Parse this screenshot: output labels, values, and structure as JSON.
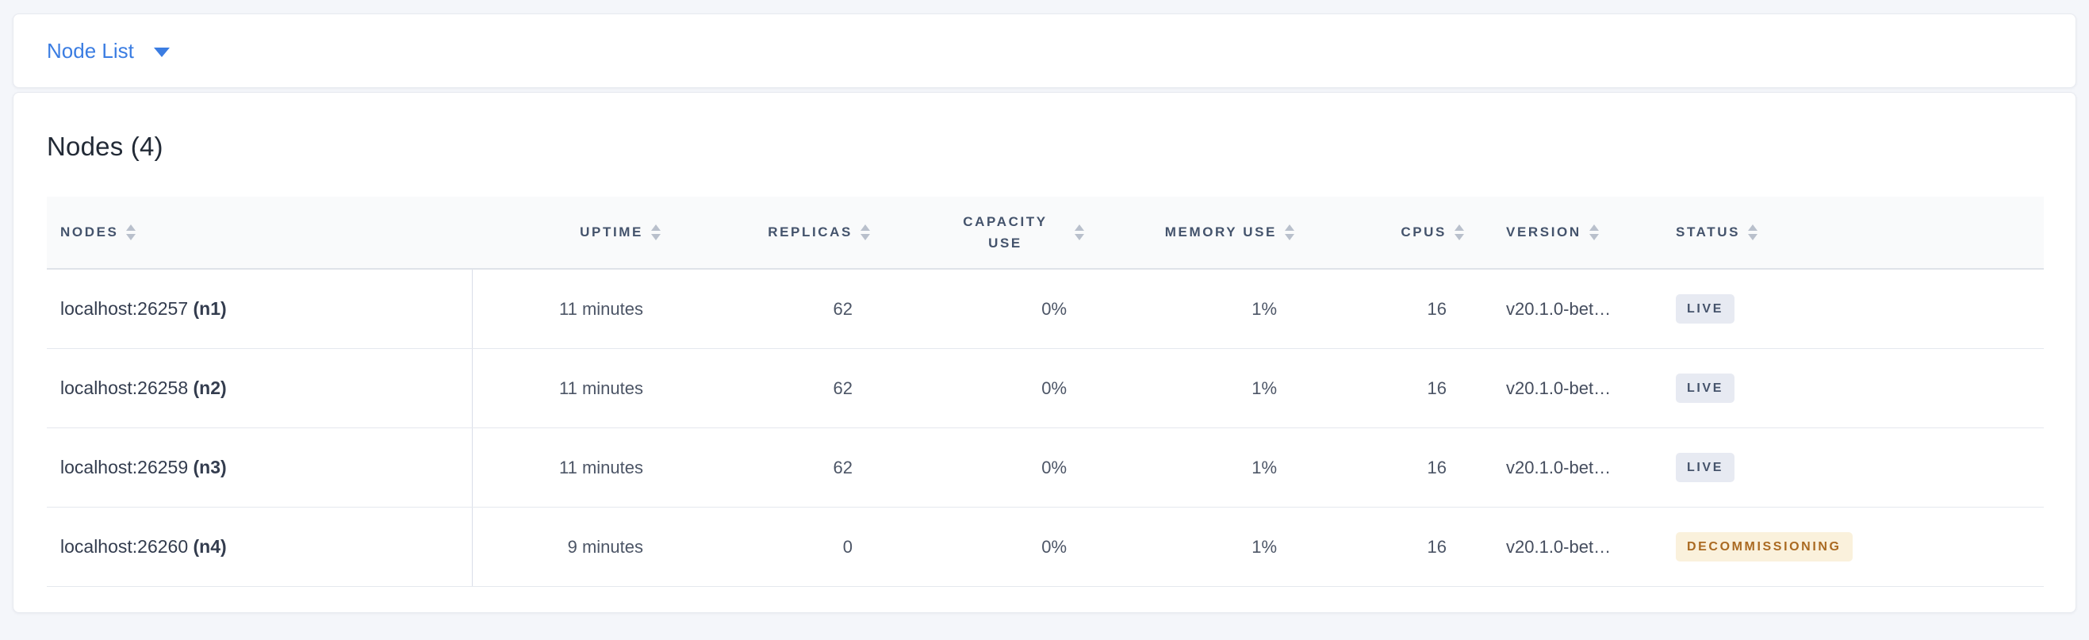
{
  "view_selector": {
    "label": "Node List"
  },
  "card": {
    "title": "Nodes (4)"
  },
  "table": {
    "columns": [
      {
        "id": "nodes",
        "label": "NODES",
        "align": "left",
        "sortable": true
      },
      {
        "id": "uptime",
        "label": "UPTIME",
        "align": "right",
        "sortable": true
      },
      {
        "id": "replicas",
        "label": "REPLICAS",
        "align": "right",
        "sortable": true
      },
      {
        "id": "capacity_use",
        "label": "CAPACITY USE",
        "align": "right",
        "sortable": true,
        "wrap": true
      },
      {
        "id": "memory_use",
        "label": "MEMORY USE",
        "align": "right",
        "sortable": true
      },
      {
        "id": "cpus",
        "label": "CPUS",
        "align": "right",
        "sortable": true
      },
      {
        "id": "version",
        "label": "VERSION",
        "align": "left",
        "sortable": true
      },
      {
        "id": "status",
        "label": "STATUS",
        "align": "left",
        "sortable": true
      }
    ],
    "rows": [
      {
        "address": "localhost:26257",
        "node_id": "(n1)",
        "uptime": "11 minutes",
        "replicas": "62",
        "capacity_use": "0%",
        "memory_use": "1%",
        "cpus": "16",
        "version": "v20.1.0-bet…",
        "status": "LIVE",
        "status_type": "live"
      },
      {
        "address": "localhost:26258",
        "node_id": "(n2)",
        "uptime": "11 minutes",
        "replicas": "62",
        "capacity_use": "0%",
        "memory_use": "1%",
        "cpus": "16",
        "version": "v20.1.0-bet…",
        "status": "LIVE",
        "status_type": "live"
      },
      {
        "address": "localhost:26259",
        "node_id": "(n3)",
        "uptime": "11 minutes",
        "replicas": "62",
        "capacity_use": "0%",
        "memory_use": "1%",
        "cpus": "16",
        "version": "v20.1.0-bet…",
        "status": "LIVE",
        "status_type": "live"
      },
      {
        "address": "localhost:26260",
        "node_id": "(n4)",
        "uptime": "9 minutes",
        "replicas": "0",
        "capacity_use": "0%",
        "memory_use": "1%",
        "cpus": "16",
        "version": "v20.1.0-bet…",
        "status": "DECOMMISSIONING",
        "status_type": "decommissioning"
      }
    ]
  },
  "colors": {
    "accent_blue": "#3b7de2",
    "header_text": "#44536c",
    "badge_live_bg": "#e7eaf2",
    "badge_live_text": "#45536b",
    "badge_decommissioning_bg": "#faf1dc",
    "badge_decommissioning_text": "#aa6a22"
  }
}
